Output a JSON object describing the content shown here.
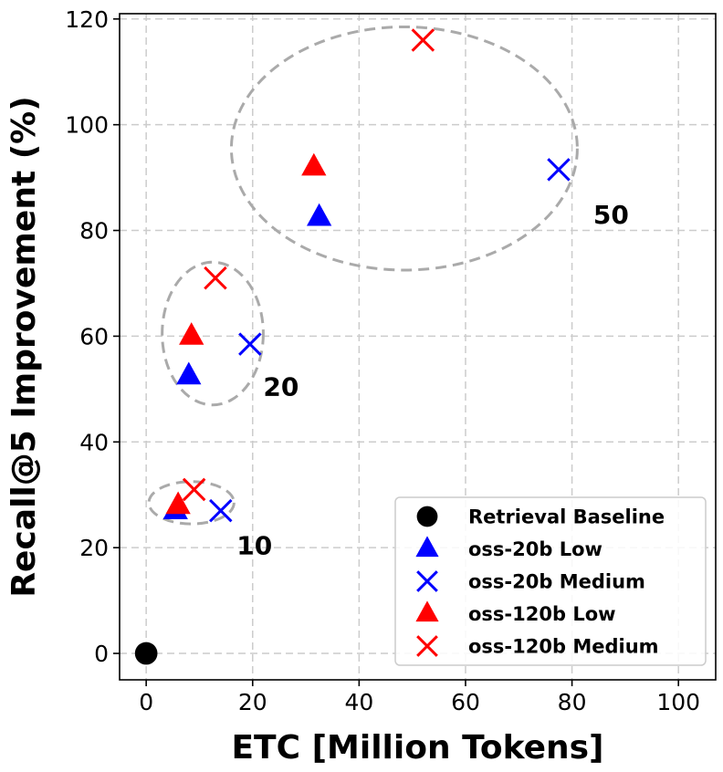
{
  "chart_data": {
    "type": "scatter",
    "xlabel": "ETC [Million Tokens]",
    "ylabel": "Recall@5 Improvement (%)",
    "xlim": [
      -5,
      107
    ],
    "ylim": [
      -5,
      121
    ],
    "xticks": [
      0,
      20,
      40,
      60,
      80,
      100
    ],
    "yticks": [
      0,
      20,
      40,
      60,
      80,
      100,
      120
    ],
    "grid": true,
    "legend_position": "bottom-right",
    "series": [
      {
        "name": "Retrieval Baseline",
        "marker": "circle",
        "color": "#000000",
        "points": [
          {
            "x": 0,
            "y": 0
          }
        ]
      },
      {
        "name": "oss-20b Low",
        "marker": "triangle",
        "color": "#0000ff",
        "points": [
          {
            "x": 5.5,
            "y": 27
          },
          {
            "x": 8,
            "y": 52.5
          },
          {
            "x": 32.5,
            "y": 82.5
          }
        ]
      },
      {
        "name": "oss-20b Medium",
        "marker": "x",
        "color": "#0000ff",
        "points": [
          {
            "x": 14,
            "y": 27
          },
          {
            "x": 19.5,
            "y": 58.5
          },
          {
            "x": 77.5,
            "y": 91.5
          }
        ]
      },
      {
        "name": "oss-120b Low",
        "marker": "triangle",
        "color": "#ff0000",
        "points": [
          {
            "x": 6,
            "y": 28
          },
          {
            "x": 8.5,
            "y": 60
          },
          {
            "x": 31.5,
            "y": 92
          }
        ]
      },
      {
        "name": "oss-120b Medium",
        "marker": "x",
        "color": "#ff0000",
        "points": [
          {
            "x": 9,
            "y": 31
          },
          {
            "x": 13,
            "y": 71
          },
          {
            "x": 52,
            "y": 116
          }
        ]
      }
    ],
    "clusters": [
      {
        "label": "10",
        "cx": 8.5,
        "cy": 28.5,
        "rx": 8,
        "ry": 4,
        "label_x": 17,
        "label_y": 20.5
      },
      {
        "label": "20",
        "cx": 12.5,
        "cy": 60.5,
        "rx": 9.5,
        "ry": 13.5,
        "label_x": 22,
        "label_y": 50.5
      },
      {
        "label": "50",
        "cx": 48.5,
        "cy": 95.5,
        "rx": 32.5,
        "ry": 23,
        "label_x": 84,
        "label_y": 83
      }
    ]
  }
}
